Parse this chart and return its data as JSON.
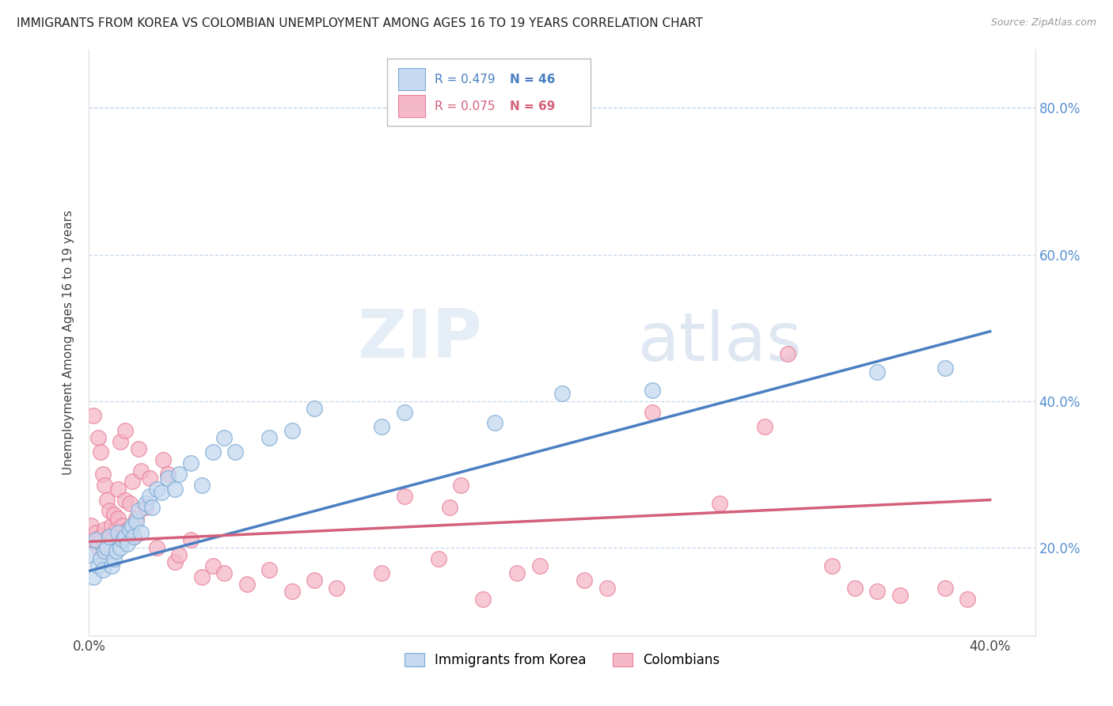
{
  "title": "IMMIGRANTS FROM KOREA VS COLOMBIAN UNEMPLOYMENT AMONG AGES 16 TO 19 YEARS CORRELATION CHART",
  "source": "Source: ZipAtlas.com",
  "ylabel": "Unemployment Among Ages 16 to 19 years",
  "xlim": [
    0.0,
    0.42
  ],
  "ylim": [
    0.08,
    0.88
  ],
  "xticks": [
    0.0,
    0.4
  ],
  "yticks_right": [
    0.2,
    0.4,
    0.6,
    0.8
  ],
  "grid_yticks": [
    0.2,
    0.4,
    0.6,
    0.8
  ],
  "korea_R": 0.479,
  "korea_N": 46,
  "colombia_R": 0.075,
  "colombia_N": 69,
  "korea_fill_color": "#c5d9f0",
  "colombia_fill_color": "#f5b8c8",
  "korea_edge_color": "#7baad4",
  "colombia_edge_color": "#e8809a",
  "korea_line_color": "#4a7fc1",
  "colombia_line_color": "#d4607a",
  "legend_korea_label": "Immigrants from Korea",
  "legend_colombia_label": "Colombians",
  "watermark_zip": "ZIP",
  "watermark_atlas": "atlas",
  "right_tick_color": "#5590d0",
  "korea_trendline": [
    0.0,
    0.4,
    0.168,
    0.495
  ],
  "colombia_trendline": [
    0.0,
    0.4,
    0.208,
    0.265
  ],
  "korea_x": [
    0.001,
    0.002,
    0.003,
    0.004,
    0.005,
    0.006,
    0.007,
    0.008,
    0.009,
    0.01,
    0.011,
    0.012,
    0.013,
    0.014,
    0.015,
    0.016,
    0.017,
    0.018,
    0.019,
    0.02,
    0.021,
    0.022,
    0.023,
    0.025,
    0.027,
    0.028,
    0.03,
    0.032,
    0.035,
    0.038,
    0.04,
    0.045,
    0.05,
    0.055,
    0.06,
    0.065,
    0.08,
    0.09,
    0.1,
    0.13,
    0.14,
    0.18,
    0.21,
    0.25,
    0.35,
    0.38
  ],
  "korea_y": [
    0.19,
    0.16,
    0.21,
    0.175,
    0.185,
    0.17,
    0.195,
    0.2,
    0.215,
    0.175,
    0.185,
    0.195,
    0.22,
    0.2,
    0.21,
    0.215,
    0.205,
    0.225,
    0.23,
    0.215,
    0.235,
    0.25,
    0.22,
    0.26,
    0.27,
    0.255,
    0.28,
    0.275,
    0.295,
    0.28,
    0.3,
    0.315,
    0.285,
    0.33,
    0.35,
    0.33,
    0.35,
    0.36,
    0.39,
    0.365,
    0.385,
    0.37,
    0.41,
    0.415,
    0.44,
    0.445
  ],
  "colombia_x": [
    0.001,
    0.002,
    0.002,
    0.003,
    0.004,
    0.004,
    0.005,
    0.005,
    0.006,
    0.006,
    0.007,
    0.007,
    0.008,
    0.008,
    0.009,
    0.009,
    0.01,
    0.01,
    0.011,
    0.012,
    0.013,
    0.013,
    0.014,
    0.015,
    0.016,
    0.016,
    0.017,
    0.018,
    0.019,
    0.02,
    0.021,
    0.022,
    0.023,
    0.025,
    0.027,
    0.03,
    0.033,
    0.035,
    0.038,
    0.04,
    0.045,
    0.05,
    0.055,
    0.06,
    0.07,
    0.08,
    0.09,
    0.1,
    0.11,
    0.13,
    0.14,
    0.155,
    0.165,
    0.175,
    0.2,
    0.22,
    0.25,
    0.28,
    0.3,
    0.31,
    0.33,
    0.34,
    0.35,
    0.36,
    0.38,
    0.39,
    0.16,
    0.19,
    0.23
  ],
  "colombia_y": [
    0.23,
    0.21,
    0.38,
    0.22,
    0.2,
    0.35,
    0.215,
    0.33,
    0.195,
    0.3,
    0.225,
    0.285,
    0.2,
    0.265,
    0.215,
    0.25,
    0.21,
    0.23,
    0.245,
    0.225,
    0.24,
    0.28,
    0.345,
    0.23,
    0.265,
    0.36,
    0.225,
    0.26,
    0.29,
    0.215,
    0.24,
    0.335,
    0.305,
    0.255,
    0.295,
    0.2,
    0.32,
    0.3,
    0.18,
    0.19,
    0.21,
    0.16,
    0.175,
    0.165,
    0.15,
    0.17,
    0.14,
    0.155,
    0.145,
    0.165,
    0.27,
    0.185,
    0.285,
    0.13,
    0.175,
    0.155,
    0.385,
    0.26,
    0.365,
    0.465,
    0.175,
    0.145,
    0.14,
    0.135,
    0.145,
    0.13,
    0.255,
    0.165,
    0.145
  ]
}
